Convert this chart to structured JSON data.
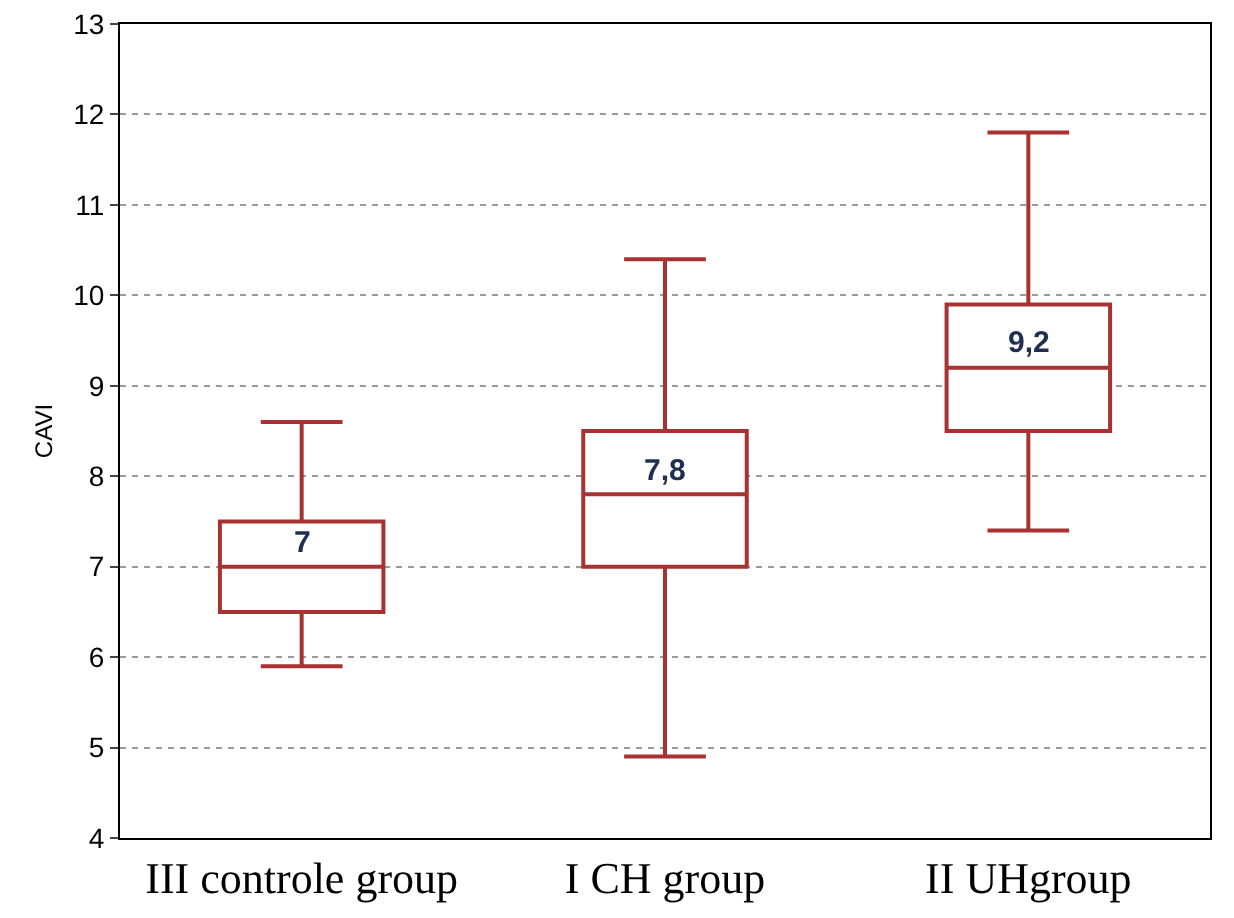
{
  "chart_data": {
    "type": "box",
    "ylabel": "CAVI",
    "categories": [
      "III controle group",
      "I CH group",
      "II UHgroup"
    ],
    "color": "#a83232",
    "boxes": [
      {
        "low": 5.9,
        "q1": 6.5,
        "median": 7,
        "q3": 7.5,
        "high": 8.6
      },
      {
        "low": 4.9,
        "q1": 7.0,
        "median": 7.8,
        "q3": 8.5,
        "high": 10.4
      },
      {
        "low": 7.4,
        "q1": 8.5,
        "median": 9.2,
        "q3": 9.9,
        "high": 11.8
      }
    ],
    "ylim": [
      4,
      13
    ],
    "yticks": [
      4,
      5,
      6,
      7,
      8,
      9,
      10,
      11,
      12,
      13
    ],
    "grid": "y",
    "annotations": [
      {
        "text": "7",
        "x": "III controle group",
        "y": 7
      },
      {
        "text": "7,8",
        "x": "I CH group",
        "y": 7.8
      },
      {
        "text": "9,2",
        "x": "II UHgroup",
        "y": 9.2
      }
    ]
  }
}
